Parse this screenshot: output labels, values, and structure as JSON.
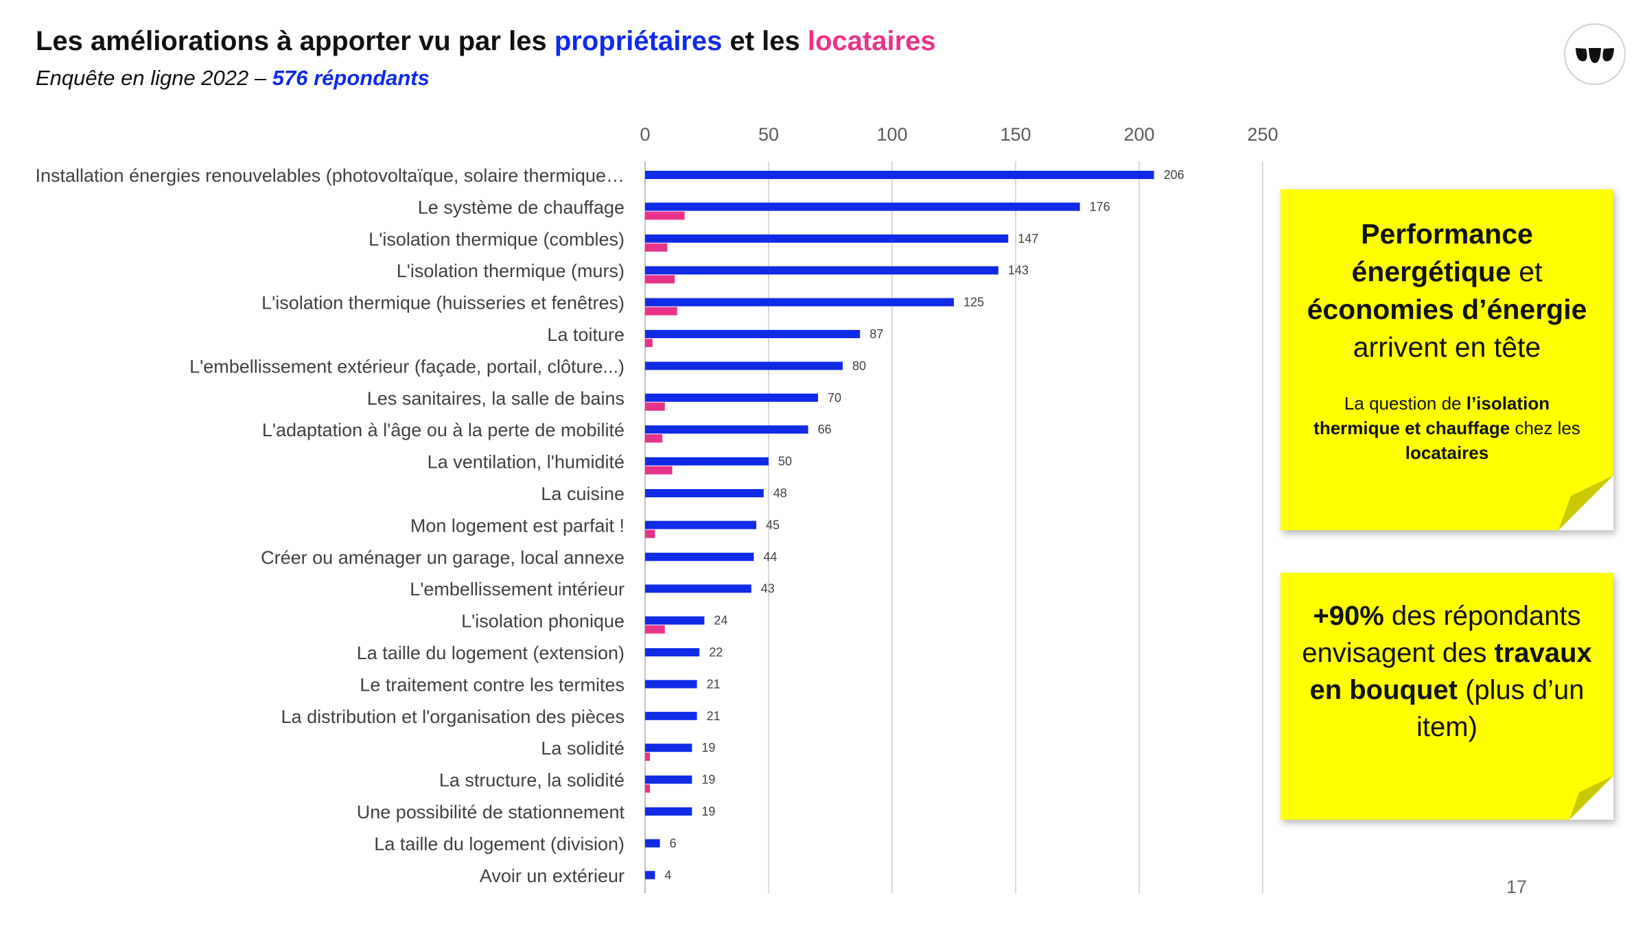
{
  "header": {
    "title_part1": "Les améliorations à apporter vu par les ",
    "title_owners": "propriétaires",
    "title_part2": " et les ",
    "title_tenants": "locataires",
    "subtitle_part1": "Enquête en ligne 2022 – ",
    "subtitle_count": "576 répondants"
  },
  "colors": {
    "owners": "#0f2be6",
    "tenants": "#e8338a",
    "note_background": "#ffff00",
    "gridline": "#d9d9d9"
  },
  "logo": {
    "icon": "brand-logo-icon"
  },
  "chart_data": {
    "type": "bar",
    "orientation": "horizontal",
    "categories": [
      "Installation énergies renouvelables (photovoltaïque, solaire thermique…",
      "Le système de chauffage",
      "L'isolation thermique (combles)",
      "L'isolation thermique (murs)",
      "L'isolation thermique (huisseries et fenêtres)",
      "La toiture",
      "L'embellissement extérieur (façade, portail, clôture...)",
      "Les sanitaires, la salle de bains",
      "L'adaptation à l'âge ou à la perte de mobilité",
      "La ventilation, l'humidité",
      "La cuisine",
      "Mon logement est parfait !",
      "Créer ou aménager un garage, local annexe",
      "L'embellissement intérieur",
      "L'isolation phonique",
      "La taille du logement (extension)",
      "Le traitement contre les termites",
      "La distribution et l'organisation des pièces",
      "La solidité",
      "La structure, la solidité",
      "Une possibilité de stationnement",
      "La taille du logement (division)",
      "Avoir un extérieur"
    ],
    "series": [
      {
        "values": [
          206,
          176,
          147,
          143,
          125,
          87,
          80,
          70,
          66,
          50,
          48,
          45,
          44,
          43,
          24,
          22,
          21,
          21,
          19,
          19,
          19,
          6,
          4
        ],
        "labeled": true
      },
      {
        "values": [
          0,
          16,
          9,
          12,
          13,
          3,
          0,
          8,
          7,
          11,
          0,
          4,
          0,
          0,
          8,
          0,
          0,
          0,
          2,
          2,
          0,
          0,
          0
        ],
        "labeled": false
      }
    ],
    "xlim": [
      0,
      250
    ],
    "xticks": [
      0,
      50,
      100,
      150,
      200,
      250
    ],
    "xaxis_position": "top",
    "grid": true,
    "legend": "none"
  },
  "notes": {
    "note1": {
      "main_b1": "Performance énergétique",
      "main_t1": " et ",
      "main_b2": "économies d’énergie",
      "main_t2": " arrivent en tête",
      "sub_t1": "La question de ",
      "sub_b1": "l’isolation thermique et chauffage",
      "sub_t2": " chez les ",
      "sub_b2": "locataires"
    },
    "note2": {
      "b1": "+90%",
      "t1": " des répondants envisagent des ",
      "b2": "travaux en bouquet",
      "t2": " (plus d’un item)"
    }
  },
  "page_number": "17"
}
